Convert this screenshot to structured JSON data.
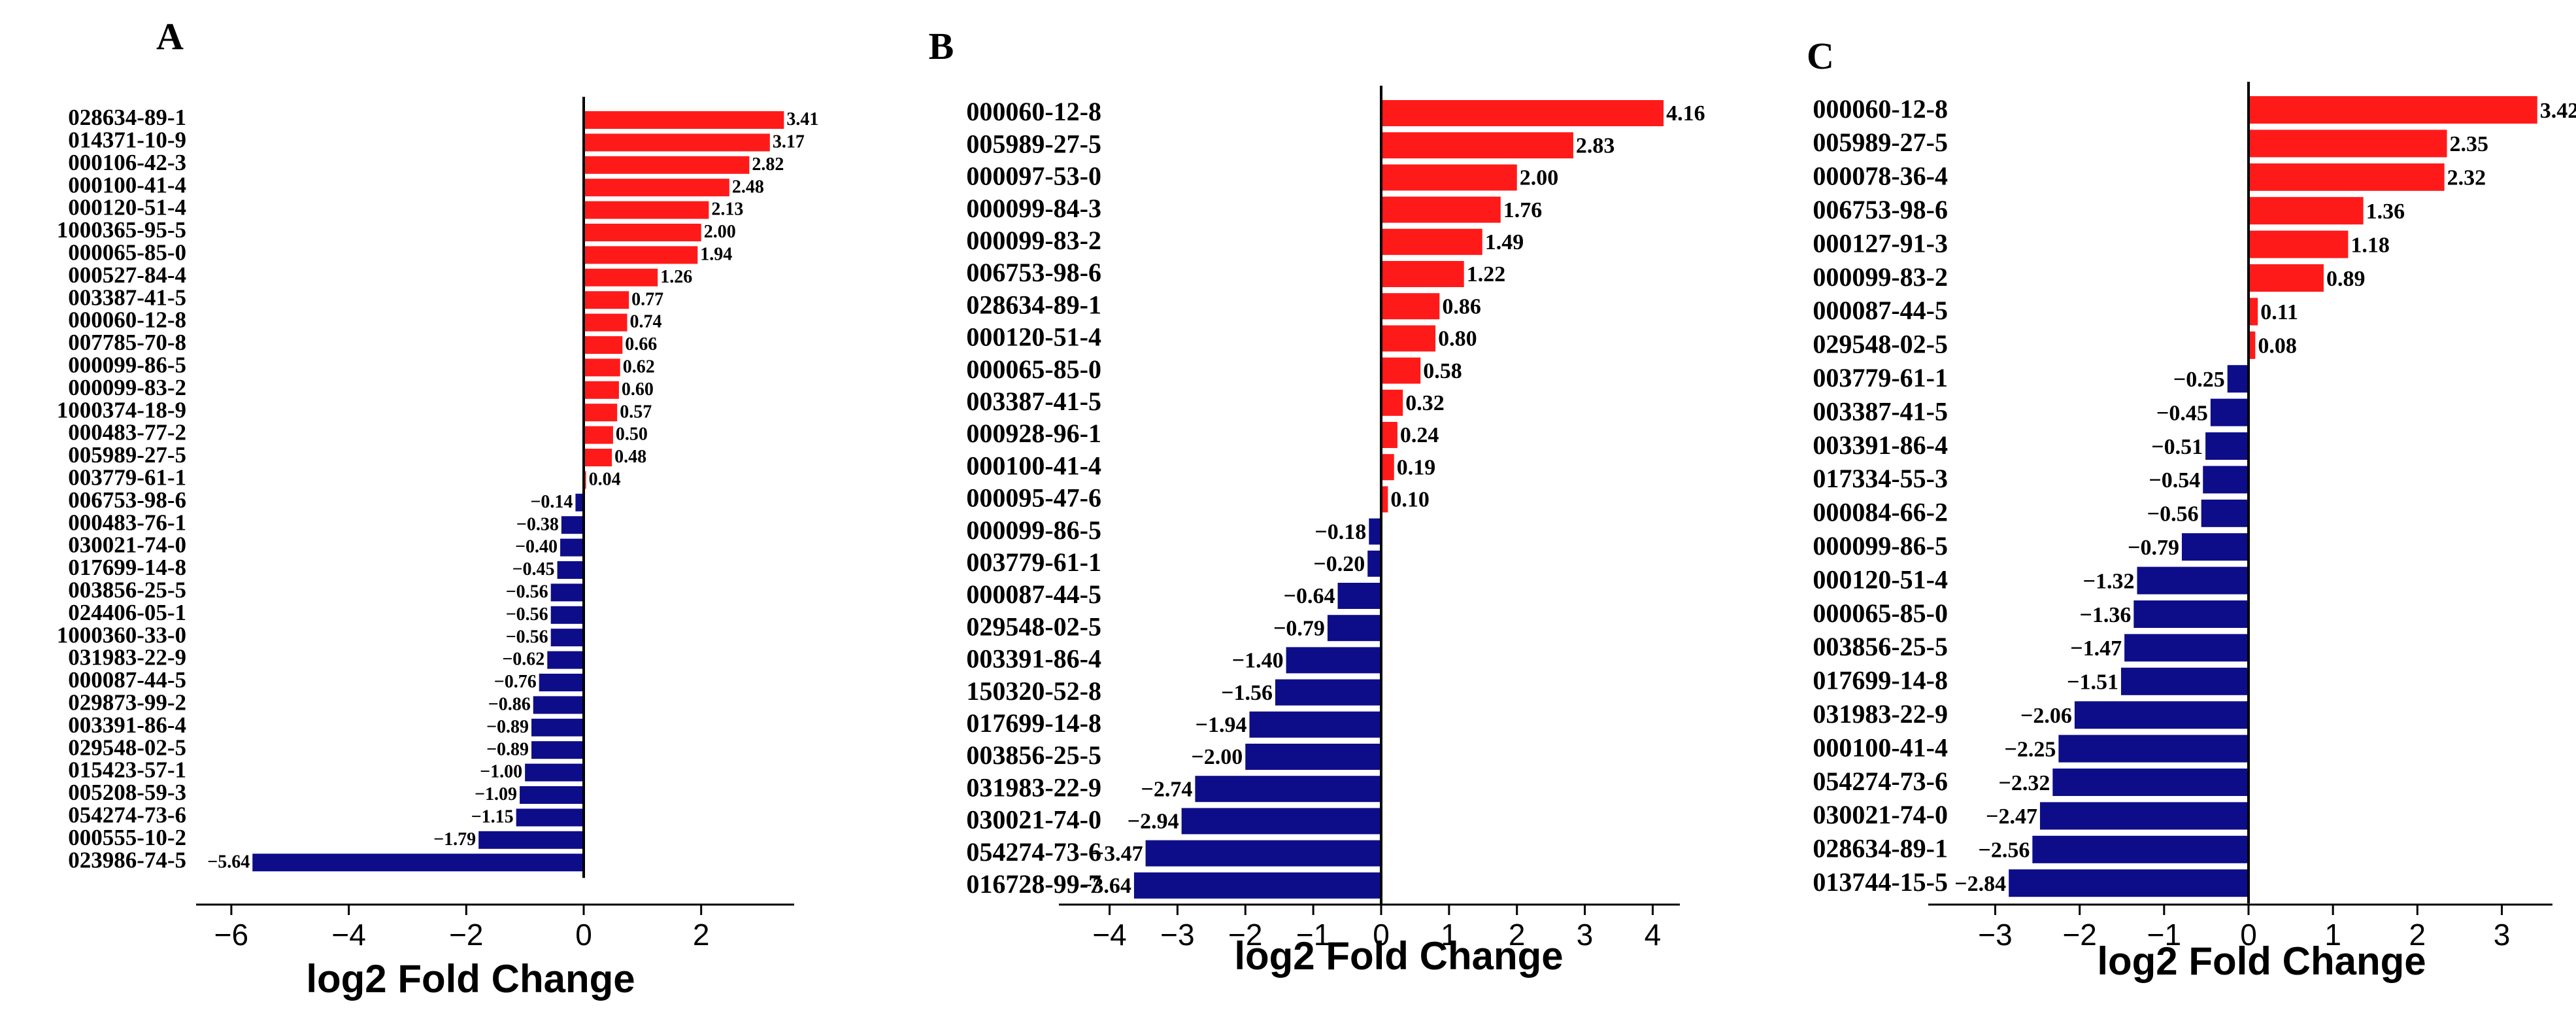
{
  "colors": {
    "positive": "#ff1a1a",
    "negative": "#0d0d8a",
    "axis": "#000000"
  },
  "chart_data": [
    {
      "type": "bar",
      "orientation": "horizontal",
      "panel_label": "A",
      "xlabel": "log2 Fold Change",
      "xlim": [
        -6.6,
        3.5
      ],
      "xticks": [
        -6,
        -4,
        -2,
        0,
        2
      ],
      "xtick_labels": [
        "−6",
        "−4",
        "−2",
        "0",
        "2"
      ],
      "categories": [
        "028634-89-1",
        "014371-10-9",
        "000106-42-3",
        "000100-41-4",
        "000120-51-4",
        "1000365-95-5",
        "000065-85-0",
        "000527-84-4",
        "003387-41-5",
        "000060-12-8",
        "007785-70-8",
        "000099-86-5",
        "000099-83-2",
        "1000374-18-9",
        "000483-77-2",
        "005989-27-5",
        "003779-61-1",
        "006753-98-6",
        "000483-76-1",
        "030021-74-0",
        "017699-14-8",
        "003856-25-5",
        "024406-05-1",
        "1000360-33-0",
        "031983-22-9",
        "000087-44-5",
        "029873-99-2",
        "003391-86-4",
        "029548-02-5",
        "015423-57-1",
        "005208-59-3",
        "054274-73-6",
        "000555-10-2",
        "023986-74-5"
      ],
      "values": [
        3.41,
        3.17,
        2.82,
        2.48,
        2.13,
        2.0,
        1.94,
        1.26,
        0.77,
        0.74,
        0.66,
        0.62,
        0.6,
        0.57,
        0.5,
        0.48,
        0.04,
        -0.14,
        -0.38,
        -0.4,
        -0.45,
        -0.56,
        -0.56,
        -0.56,
        -0.62,
        -0.76,
        -0.86,
        -0.89,
        -0.89,
        -1.0,
        -1.09,
        -1.15,
        -1.79,
        -5.64
      ],
      "value_labels": [
        "3.41",
        "3.17",
        "2.82",
        "2.48",
        "2.13",
        "2.00",
        "1.94",
        "1.26",
        "0.77",
        "0.74",
        "0.66",
        "0.62",
        "0.60",
        "0.57",
        "0.50",
        "0.48",
        "0.04",
        "−0.14",
        "−0.38",
        "−0.40",
        "−0.45",
        "−0.56",
        "−0.56",
        "−0.56",
        "−0.62",
        "−0.76",
        "−0.86",
        "−0.89",
        "−0.89",
        "−1.00",
        "−1.09",
        "−1.15",
        "−1.79",
        "−5.64"
      ]
    },
    {
      "type": "bar",
      "orientation": "horizontal",
      "panel_label": "B",
      "xlabel": "log2 Fold Change",
      "xlim": [
        -4.5,
        4.4
      ],
      "xticks": [
        -4,
        -3,
        -2,
        -1,
        0,
        1,
        2,
        3,
        4
      ],
      "xtick_labels": [
        "−4",
        "−3",
        "−2",
        "−1",
        "0",
        "1",
        "2",
        "3",
        "4"
      ],
      "categories": [
        "000060-12-8",
        "005989-27-5",
        "000097-53-0",
        "000099-84-3",
        "000099-83-2",
        "006753-98-6",
        "028634-89-1",
        "000120-51-4",
        "000065-85-0",
        "003387-41-5",
        "000928-96-1",
        "000100-41-4",
        "000095-47-6",
        "000099-86-5",
        "003779-61-1",
        "000087-44-5",
        "029548-02-5",
        "003391-86-4",
        "150320-52-8",
        "017699-14-8",
        "003856-25-5",
        "031983-22-9",
        "030021-74-0",
        "054274-73-6",
        "016728-99-7"
      ],
      "values": [
        4.16,
        2.83,
        2.0,
        1.76,
        1.49,
        1.22,
        0.86,
        0.8,
        0.58,
        0.32,
        0.24,
        0.19,
        0.1,
        -0.18,
        -0.2,
        -0.64,
        -0.79,
        -1.4,
        -1.56,
        -1.94,
        -2.0,
        -2.74,
        -2.94,
        -3.47,
        -3.64
      ],
      "value_labels": [
        "4.16",
        "2.83",
        "2.00",
        "1.76",
        "1.49",
        "1.22",
        "0.86",
        "0.80",
        "0.58",
        "0.32",
        "0.24",
        "0.19",
        "0.10",
        "−0.18",
        "−0.20",
        "−0.64",
        "−0.79",
        "−1.40",
        "−1.56",
        "−1.94",
        "−2.00",
        "−2.74",
        "−2.94",
        "−3.47",
        "−3.64"
      ]
    },
    {
      "type": "bar",
      "orientation": "horizontal",
      "panel_label": "C",
      "xlabel": "log2 Fold Change",
      "xlim": [
        -3.4,
        3.6
      ],
      "xticks": [
        -3,
        -2,
        -1,
        0,
        1,
        2,
        3
      ],
      "xtick_labels": [
        "−3",
        "−2",
        "−1",
        "0",
        "1",
        "2",
        "3"
      ],
      "categories": [
        "000060-12-8",
        "005989-27-5",
        "000078-36-4",
        "006753-98-6",
        "000127-91-3",
        "000099-83-2",
        "000087-44-5",
        "029548-02-5",
        "003779-61-1",
        "003387-41-5",
        "003391-86-4",
        "017334-55-3",
        "000084-66-2",
        "000099-86-5",
        "000120-51-4",
        "000065-85-0",
        "003856-25-5",
        "017699-14-8",
        "031983-22-9",
        "000100-41-4",
        "054274-73-6",
        "030021-74-0",
        "028634-89-1",
        "013744-15-5"
      ],
      "values": [
        3.42,
        2.35,
        2.32,
        1.36,
        1.18,
        0.89,
        0.11,
        0.08,
        -0.25,
        -0.45,
        -0.51,
        -0.54,
        -0.56,
        -0.79,
        -1.32,
        -1.36,
        -1.47,
        -1.51,
        -2.06,
        -2.25,
        -2.32,
        -2.47,
        -2.56,
        -2.84
      ],
      "value_labels": [
        "3.42",
        "2.35",
        "2.32",
        "1.36",
        "1.18",
        "0.89",
        "0.11",
        "0.08",
        "−0.25",
        "−0.45",
        "−0.51",
        "−0.54",
        "−0.56",
        "−0.79",
        "−1.32",
        "−1.36",
        "−1.47",
        "−1.51",
        "−2.06",
        "−2.25",
        "−2.32",
        "−2.47",
        "−2.56",
        "−2.84"
      ]
    }
  ]
}
